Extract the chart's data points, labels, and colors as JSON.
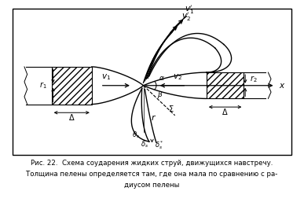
{
  "caption_line1": "Рис. 22.  Схема соударения жидких струй, движущихся навстречу.",
  "caption_line2": "Толщина пелены определяется там, где она мала по сравнению с ра-",
  "caption_line3": "диусом пелены",
  "bg_color": "#ffffff",
  "line_color": "#000000"
}
